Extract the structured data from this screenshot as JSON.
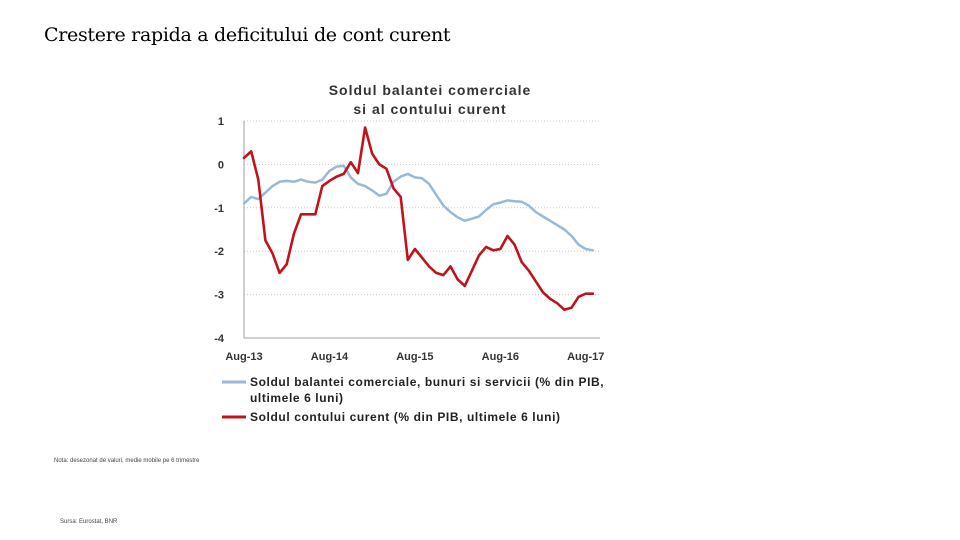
{
  "slide": {
    "title": "Crestere rapida a deficitului de cont curent",
    "note": "Nota: desezonat de valuri, medie mobile pe 6 trimestre",
    "source": "Sursa: Eurostat, BNR"
  },
  "chart_data": {
    "type": "line",
    "title_lines": [
      "Soldul balantei comerciale",
      "si al contului curent"
    ],
    "ylim": [
      -4,
      1
    ],
    "yticks": [
      "1",
      "0",
      "-1",
      "-2",
      "-3",
      "-4"
    ],
    "xlim": [
      2013.583,
      2017.75
    ],
    "xticks": [
      {
        "label": "Aug-13",
        "x": 2013.583
      },
      {
        "label": "Aug-14",
        "x": 2014.583
      },
      {
        "label": "Aug-15",
        "x": 2015.583
      },
      {
        "label": "Aug-16",
        "x": 2016.583
      },
      {
        "label": "Aug-17",
        "x": 2017.583
      }
    ],
    "grid": true,
    "legend_position": "bottom",
    "series": [
      {
        "name_lines": [
          "Soldul balantei comerciale, bunuri si servicii (% din PIB,",
          "ultimele 6 luni)"
        ],
        "color": "#9ab9d9",
        "x": [
          2013.583,
          2013.667,
          2013.75,
          2013.833,
          2013.917,
          2014.0,
          2014.083,
          2014.167,
          2014.25,
          2014.333,
          2014.417,
          2014.5,
          2014.583,
          2014.667,
          2014.75,
          2014.833,
          2014.917,
          2015.0,
          2015.083,
          2015.167,
          2015.25,
          2015.333,
          2015.417,
          2015.5,
          2015.583,
          2015.667,
          2015.75,
          2015.833,
          2015.917,
          2016.0,
          2016.083,
          2016.167,
          2016.25,
          2016.333,
          2016.417,
          2016.5,
          2016.583,
          2016.667,
          2016.75,
          2016.833,
          2016.917,
          2017.0,
          2017.083,
          2017.167,
          2017.25,
          2017.333,
          2017.417,
          2017.5,
          2017.583,
          2017.667
        ],
        "values": [
          -0.9,
          -0.75,
          -0.8,
          -0.65,
          -0.5,
          -0.4,
          -0.38,
          -0.4,
          -0.35,
          -0.4,
          -0.42,
          -0.35,
          -0.15,
          -0.05,
          -0.03,
          -0.3,
          -0.45,
          -0.5,
          -0.6,
          -0.72,
          -0.68,
          -0.4,
          -0.28,
          -0.22,
          -0.3,
          -0.32,
          -0.45,
          -0.7,
          -0.95,
          -1.1,
          -1.22,
          -1.3,
          -1.25,
          -1.2,
          -1.05,
          -0.92,
          -0.88,
          -0.83,
          -0.85,
          -0.86,
          -0.95,
          -1.1,
          -1.2,
          -1.3,
          -1.4,
          -1.5,
          -1.65,
          -1.85,
          -1.95,
          -1.98
        ]
      },
      {
        "name_lines": [
          "Soldul contului curent (% din PIB, ultimele 6 luni)"
        ],
        "color": "#c0141d",
        "x": [
          2013.583,
          2013.667,
          2013.75,
          2013.833,
          2013.917,
          2014.0,
          2014.083,
          2014.167,
          2014.25,
          2014.333,
          2014.417,
          2014.5,
          2014.583,
          2014.667,
          2014.75,
          2014.833,
          2014.917,
          2015.0,
          2015.083,
          2015.167,
          2015.25,
          2015.333,
          2015.417,
          2015.5,
          2015.583,
          2015.667,
          2015.75,
          2015.833,
          2015.917,
          2016.0,
          2016.083,
          2016.167,
          2016.25,
          2016.333,
          2016.417,
          2016.5,
          2016.583,
          2016.667,
          2016.75,
          2016.833,
          2016.917,
          2017.0,
          2017.083,
          2017.167,
          2017.25,
          2017.333,
          2017.417,
          2017.5,
          2017.583,
          2017.667
        ],
        "values": [
          0.15,
          0.3,
          -0.35,
          -1.75,
          -2.05,
          -2.5,
          -2.3,
          -1.6,
          -1.15,
          -1.15,
          -1.15,
          -0.5,
          -0.38,
          -0.28,
          -0.22,
          0.05,
          -0.2,
          0.85,
          0.25,
          0.0,
          -0.1,
          -0.55,
          -0.75,
          -2.2,
          -1.95,
          -2.15,
          -2.35,
          -2.5,
          -2.55,
          -2.35,
          -2.65,
          -2.8,
          -2.45,
          -2.1,
          -1.9,
          -1.98,
          -1.95,
          -1.65,
          -1.85,
          -2.25,
          -2.45,
          -2.7,
          -2.95,
          -3.1,
          -3.2,
          -3.35,
          -3.3,
          -3.05,
          -2.98,
          -2.98
        ]
      }
    ]
  }
}
